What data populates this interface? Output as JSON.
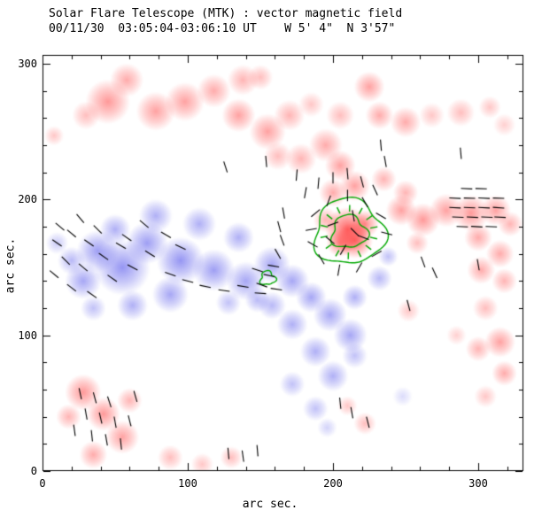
{
  "chart_data": {
    "type": "heatmap",
    "title": "Solar Flare Telescope (MTK) : vector magnetic field",
    "subtitle": "00/11/30  03:05:04-03:06:10 UT    W 5' 4\"  N 3'57\"",
    "xlabel": "arc sec.",
    "ylabel": "arc sec.",
    "xlim": [
      0,
      331
    ],
    "ylim": [
      0,
      306
    ],
    "xticks": [
      0,
      100,
      200,
      300
    ],
    "yticks": [
      0,
      100,
      200,
      300
    ],
    "grid": false,
    "legend": "none",
    "colors": {
      "positive": "#ff4646",
      "negative": "#5050eb",
      "contour": "#00a800",
      "vector": "#000000",
      "axes": "#000000",
      "background": "#ffffff"
    },
    "vector_length_arcsec": 8,
    "positive_blobs": [
      [
        45,
        272,
        16,
        0.55
      ],
      [
        58,
        288,
        12,
        0.45
      ],
      [
        30,
        262,
        10,
        0.35
      ],
      [
        78,
        265,
        14,
        0.5
      ],
      [
        98,
        272,
        14,
        0.5
      ],
      [
        118,
        280,
        12,
        0.45
      ],
      [
        138,
        288,
        11,
        0.4
      ],
      [
        135,
        262,
        12,
        0.5
      ],
      [
        155,
        250,
        13,
        0.5
      ],
      [
        170,
        262,
        11,
        0.4
      ],
      [
        150,
        290,
        9,
        0.35
      ],
      [
        8,
        247,
        7,
        0.3
      ],
      [
        185,
        270,
        9,
        0.3
      ],
      [
        205,
        262,
        10,
        0.35
      ],
      [
        225,
        283,
        11,
        0.5
      ],
      [
        232,
        262,
        10,
        0.45
      ],
      [
        250,
        257,
        11,
        0.45
      ],
      [
        268,
        262,
        9,
        0.3
      ],
      [
        288,
        264,
        10,
        0.35
      ],
      [
        308,
        268,
        8,
        0.3
      ],
      [
        318,
        255,
        8,
        0.25
      ],
      [
        195,
        240,
        12,
        0.45
      ],
      [
        178,
        230,
        11,
        0.4
      ],
      [
        162,
        232,
        10,
        0.35
      ],
      [
        205,
        225,
        11,
        0.5
      ],
      [
        215,
        210,
        11,
        0.5
      ],
      [
        200,
        205,
        10,
        0.45
      ],
      [
        210,
        178,
        16,
        0.85
      ],
      [
        215,
        170,
        13,
        0.8
      ],
      [
        205,
        168,
        10,
        0.6
      ],
      [
        222,
        182,
        10,
        0.6
      ],
      [
        195,
        185,
        9,
        0.4
      ],
      [
        247,
        192,
        11,
        0.5
      ],
      [
        262,
        185,
        12,
        0.55
      ],
      [
        278,
        192,
        12,
        0.5
      ],
      [
        295,
        190,
        13,
        0.55
      ],
      [
        312,
        192,
        11,
        0.5
      ],
      [
        322,
        182,
        9,
        0.4
      ],
      [
        300,
        172,
        10,
        0.45
      ],
      [
        315,
        160,
        10,
        0.45
      ],
      [
        302,
        148,
        10,
        0.45
      ],
      [
        318,
        140,
        9,
        0.4
      ],
      [
        258,
        168,
        8,
        0.35
      ],
      [
        250,
        205,
        9,
        0.4
      ],
      [
        235,
        215,
        9,
        0.4
      ],
      [
        305,
        120,
        9,
        0.35
      ],
      [
        315,
        95,
        11,
        0.5
      ],
      [
        300,
        90,
        9,
        0.4
      ],
      [
        318,
        72,
        9,
        0.45
      ],
      [
        305,
        55,
        8,
        0.3
      ],
      [
        252,
        118,
        8,
        0.3
      ],
      [
        285,
        100,
        7,
        0.25
      ],
      [
        28,
        58,
        13,
        0.55
      ],
      [
        42,
        42,
        12,
        0.55
      ],
      [
        55,
        25,
        12,
        0.5
      ],
      [
        35,
        12,
        10,
        0.45
      ],
      [
        18,
        40,
        9,
        0.4
      ],
      [
        60,
        52,
        9,
        0.4
      ],
      [
        88,
        10,
        9,
        0.35
      ],
      [
        110,
        5,
        8,
        0.3
      ],
      [
        130,
        10,
        8,
        0.35
      ],
      [
        222,
        35,
        8,
        0.35
      ],
      [
        210,
        48,
        7,
        0.3
      ]
    ],
    "negative_blobs": [
      [
        55,
        150,
        20,
        0.6
      ],
      [
        38,
        162,
        15,
        0.55
      ],
      [
        28,
        140,
        13,
        0.5
      ],
      [
        72,
        168,
        15,
        0.55
      ],
      [
        95,
        155,
        17,
        0.6
      ],
      [
        118,
        148,
        15,
        0.55
      ],
      [
        140,
        140,
        14,
        0.5
      ],
      [
        88,
        130,
        13,
        0.5
      ],
      [
        62,
        122,
        11,
        0.45
      ],
      [
        78,
        188,
        12,
        0.45
      ],
      [
        108,
        182,
        12,
        0.45
      ],
      [
        135,
        172,
        11,
        0.45
      ],
      [
        158,
        152,
        13,
        0.5
      ],
      [
        172,
        140,
        12,
        0.5
      ],
      [
        185,
        128,
        11,
        0.5
      ],
      [
        198,
        115,
        12,
        0.5
      ],
      [
        212,
        100,
        12,
        0.5
      ],
      [
        172,
        108,
        11,
        0.45
      ],
      [
        158,
        122,
        10,
        0.4
      ],
      [
        188,
        88,
        11,
        0.45
      ],
      [
        200,
        70,
        11,
        0.45
      ],
      [
        172,
        64,
        9,
        0.35
      ],
      [
        188,
        46,
        9,
        0.35
      ],
      [
        232,
        142,
        9,
        0.4
      ],
      [
        238,
        158,
        7,
        0.35
      ],
      [
        148,
        126,
        9,
        0.4
      ],
      [
        128,
        124,
        9,
        0.35
      ],
      [
        248,
        55,
        7,
        0.2
      ],
      [
        215,
        128,
        9,
        0.45
      ],
      [
        35,
        120,
        9,
        0.35
      ],
      [
        20,
        155,
        10,
        0.4
      ],
      [
        50,
        178,
        11,
        0.45
      ],
      [
        10,
        168,
        8,
        0.3
      ],
      [
        215,
        85,
        9,
        0.35
      ],
      [
        196,
        32,
        7,
        0.25
      ]
    ],
    "vectors": [
      [
        10,
        168,
        -35
      ],
      [
        20,
        175,
        -40
      ],
      [
        32,
        168,
        -35
      ],
      [
        16,
        155,
        -45
      ],
      [
        28,
        150,
        -40
      ],
      [
        42,
        158,
        -35
      ],
      [
        54,
        166,
        -30
      ],
      [
        38,
        178,
        -45
      ],
      [
        26,
        186,
        -50
      ],
      [
        12,
        180,
        -40
      ],
      [
        48,
        142,
        -35
      ],
      [
        62,
        150,
        -28
      ],
      [
        74,
        160,
        -32
      ],
      [
        58,
        172,
        -35
      ],
      [
        70,
        182,
        -40
      ],
      [
        85,
        174,
        -30
      ],
      [
        8,
        145,
        -40
      ],
      [
        20,
        135,
        -38
      ],
      [
        34,
        130,
        -35
      ],
      [
        95,
        165,
        -25
      ],
      [
        112,
        136,
        -12
      ],
      [
        125,
        133,
        -8
      ],
      [
        138,
        136,
        -10
      ],
      [
        150,
        131,
        -4
      ],
      [
        161,
        134,
        -8
      ],
      [
        100,
        140,
        -15
      ],
      [
        88,
        145,
        -20
      ],
      [
        148,
        148,
        -18
      ],
      [
        156,
        144,
        -12
      ],
      [
        151,
        137,
        -20
      ],
      [
        159,
        151,
        -10
      ],
      [
        162,
        160,
        -60
      ],
      [
        165,
        170,
        -70
      ],
      [
        163,
        180,
        -75
      ],
      [
        166,
        190,
        -80
      ],
      [
        185,
        178,
        -170
      ],
      [
        188,
        190,
        -140
      ],
      [
        197,
        199,
        -110
      ],
      [
        210,
        203,
        -90
      ],
      [
        222,
        198,
        -60
      ],
      [
        233,
        188,
        -30
      ],
      [
        237,
        175,
        -15
      ],
      [
        230,
        160,
        30
      ],
      [
        218,
        150,
        60
      ],
      [
        204,
        148,
        80
      ],
      [
        192,
        156,
        120
      ],
      [
        186,
        167,
        150
      ],
      [
        200,
        182,
        -160
      ],
      [
        214,
        188,
        -80
      ],
      [
        221,
        172,
        -20
      ],
      [
        207,
        163,
        60
      ],
      [
        198,
        170,
        140
      ],
      [
        215,
        176,
        -45
      ],
      [
        190,
        212,
        -95
      ],
      [
        200,
        216,
        -90
      ],
      [
        210,
        219,
        -85
      ],
      [
        220,
        213,
        -75
      ],
      [
        229,
        207,
        -65
      ],
      [
        181,
        205,
        -100
      ],
      [
        175,
        218,
        -95
      ],
      [
        154,
        228,
        -85
      ],
      [
        233,
        240,
        -85
      ],
      [
        236,
        228,
        -80
      ],
      [
        288,
        234,
        -85
      ],
      [
        126,
        224,
        -72
      ],
      [
        284,
        201,
        -3
      ],
      [
        294,
        201,
        -2
      ],
      [
        304,
        201,
        -3
      ],
      [
        314,
        201,
        -2
      ],
      [
        284,
        194,
        -3
      ],
      [
        294,
        194,
        -2
      ],
      [
        304,
        194,
        -3
      ],
      [
        314,
        194,
        -4
      ],
      [
        286,
        187,
        -2
      ],
      [
        296,
        187,
        -3
      ],
      [
        306,
        187,
        -2
      ],
      [
        315,
        187,
        -3
      ],
      [
        289,
        180,
        -2
      ],
      [
        299,
        180,
        -3
      ],
      [
        309,
        180,
        -2
      ],
      [
        292,
        208,
        -3
      ],
      [
        302,
        208,
        -2
      ],
      [
        262,
        154,
        -70
      ],
      [
        270,
        146,
        -65
      ],
      [
        252,
        122,
        -75
      ],
      [
        300,
        152,
        -80
      ],
      [
        26,
        57,
        -78
      ],
      [
        36,
        54,
        -75
      ],
      [
        46,
        51,
        -72
      ],
      [
        30,
        42,
        -80
      ],
      [
        40,
        39,
        -77
      ],
      [
        50,
        36,
        -80
      ],
      [
        34,
        26,
        -84
      ],
      [
        44,
        23,
        -80
      ],
      [
        54,
        20,
        -84
      ],
      [
        60,
        37,
        -76
      ],
      [
        22,
        30,
        -82
      ],
      [
        64,
        55,
        -74
      ],
      [
        128,
        13,
        -85
      ],
      [
        138,
        11,
        -82
      ],
      [
        148,
        15,
        -85
      ],
      [
        205,
        50,
        -84
      ],
      [
        213,
        43,
        -80
      ],
      [
        224,
        36,
        -76
      ]
    ],
    "contours": {
      "main": {
        "x": 211,
        "y": 176,
        "outer_r": 24,
        "inner_r": 12,
        "radial_ticks": 14
      },
      "small": {
        "x": 155,
        "y": 142,
        "outer_r": 5
      }
    }
  }
}
